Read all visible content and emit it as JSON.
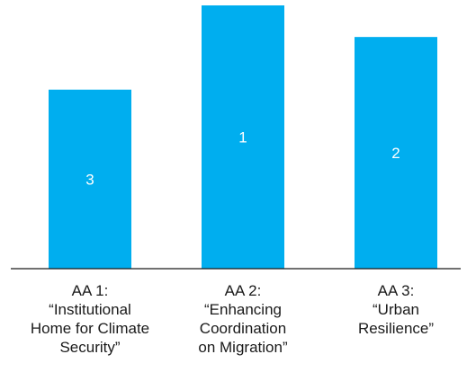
{
  "colors": {
    "bar": "#00AEEF",
    "axis": "#1a1a1a",
    "text": "#1a1a1a",
    "bar_label": "#ffffff"
  },
  "chart_data": {
    "type": "bar",
    "title": "",
    "xlabel": "",
    "ylabel": "",
    "grid": false,
    "legend": "none",
    "ylim": [
      0,
      100
    ],
    "categories": [
      [
        "AA 1:",
        "“Institutional",
        "Home for Climate",
        "Security”"
      ],
      [
        "AA 2:",
        "“Enhancing",
        "Coordination",
        "on Migration”"
      ],
      [
        "AA 3:",
        "“Urban",
        "Resilience”"
      ]
    ],
    "values": [
      68,
      100,
      88
    ],
    "data_labels": [
      "3",
      "1",
      "2"
    ]
  }
}
